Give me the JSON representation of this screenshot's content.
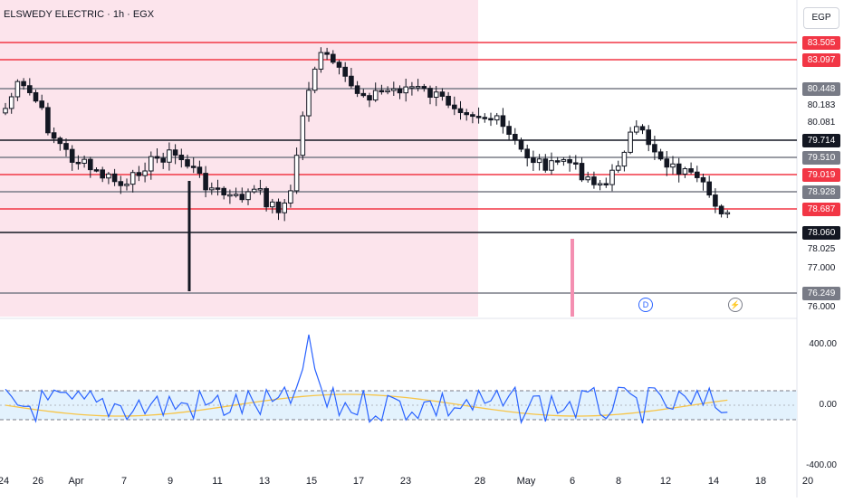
{
  "header": {
    "symbol_title": "ELSWEDY ELECTRIC · 1h · EGX",
    "currency": "EGP"
  },
  "colors": {
    "up": "#787b86",
    "down": "#000000",
    "red": "#f23645",
    "shade": "#fce4ec",
    "black_line": "#131722",
    "gray_line": "#787b86",
    "osc": "#2962ff",
    "sig": "#f7c548",
    "band": "#e3f2fd"
  },
  "price_levels": [
    {
      "value": "83.505",
      "style": "red"
    },
    {
      "value": "83.097",
      "style": "red"
    },
    {
      "value": "80.448",
      "style": "gray"
    },
    {
      "value": "80.183",
      "style": "plain"
    },
    {
      "value": "80.081",
      "style": "plain"
    },
    {
      "value": "79.714",
      "style": "black"
    },
    {
      "value": "79.510",
      "style": "gray"
    },
    {
      "value": "79.019",
      "style": "red"
    },
    {
      "value": "78.928",
      "style": "gray"
    },
    {
      "value": "78.687",
      "style": "red"
    },
    {
      "value": "78.060",
      "style": "black"
    },
    {
      "value": "78.025",
      "style": "plain"
    },
    {
      "value": "77.000",
      "style": "plain"
    },
    {
      "value": "76.249",
      "style": "gray"
    },
    {
      "value": "76.000",
      "style": "plain"
    }
  ],
  "x_axis_labels": [
    "24",
    "26",
    "Apr",
    "7",
    "9",
    "11",
    "13",
    "15",
    "17",
    "23",
    "28",
    "May",
    "6",
    "8",
    "12",
    "14",
    "18",
    "20"
  ],
  "indicator": {
    "labels": [
      "400.00",
      "0.00",
      "-400.00"
    ]
  },
  "event_markers": [
    {
      "label": "D",
      "kind": "dividend"
    },
    {
      "label": "⚡",
      "kind": "earnings"
    }
  ]
}
